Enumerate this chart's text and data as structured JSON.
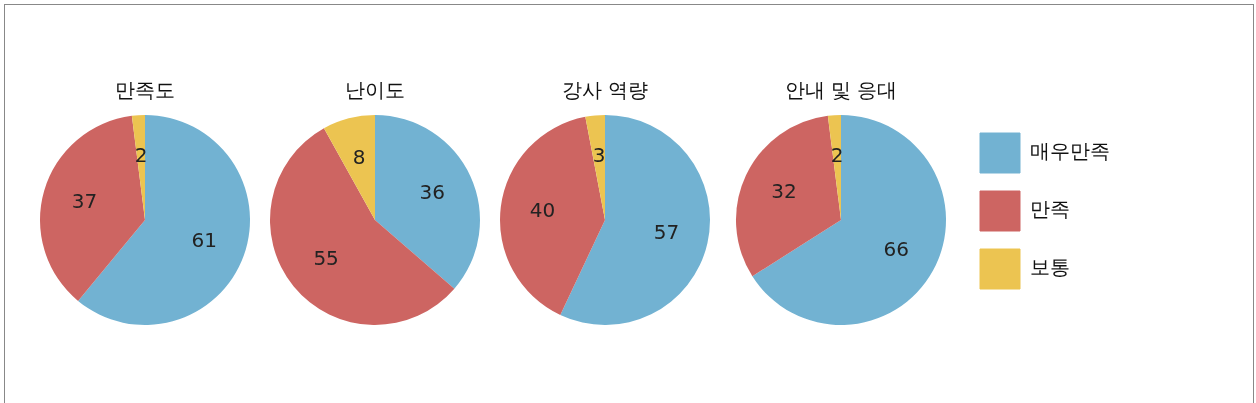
{
  "chart_data": [
    {
      "type": "pie",
      "title": "만족도",
      "categories": [
        null,
        null,
        null
      ],
      "values": [
        61,
        37,
        2
      ],
      "colors": [
        "#72b2d2",
        "#cd6562",
        "#ecc451"
      ],
      "data_labels": true
    },
    {
      "type": "pie",
      "title": "난이도",
      "categories": [
        null,
        null,
        null
      ],
      "values": [
        36,
        55,
        8
      ],
      "colors": [
        "#72b2d2",
        "#cd6562",
        "#ecc451"
      ],
      "data_labels": true
    },
    {
      "type": "pie",
      "title": "강사 역량",
      "categories": [
        null,
        null,
        null
      ],
      "values": [
        57,
        40,
        3
      ],
      "colors": [
        "#72b2d2",
        "#cd6562",
        "#ecc451"
      ],
      "data_labels": true
    },
    {
      "type": "pie",
      "title": "안내 및 응대",
      "categories": [
        "매우만족",
        "만족",
        "보통"
      ],
      "values": [
        66,
        32,
        2
      ],
      "colors": [
        "#72b2d2",
        "#cd6562",
        "#ecc451"
      ],
      "data_labels": true,
      "legend": "right"
    }
  ]
}
